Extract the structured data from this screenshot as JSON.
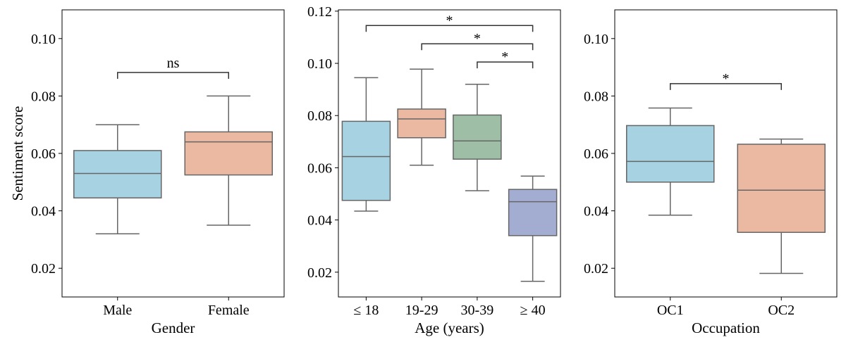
{
  "shared": {
    "ylabel": "Sentiment score"
  },
  "chart_data": [
    {
      "type": "box",
      "xlabel": "Gender",
      "ylim": [
        0.01,
        0.11
      ],
      "yticks": [
        "0.02",
        "0.04",
        "0.06",
        "0.08",
        "0.10"
      ],
      "grid": false,
      "categories": [
        "Male",
        "Female"
      ],
      "boxes": [
        {
          "name": "Male",
          "whisker_low": 0.032,
          "q1": 0.0445,
          "median": 0.053,
          "q3": 0.061,
          "whisker_high": 0.07,
          "color": "#a7d2e2"
        },
        {
          "name": "Female",
          "whisker_low": 0.035,
          "q1": 0.0525,
          "median": 0.064,
          "q3": 0.0675,
          "whisker_high": 0.08,
          "color": "#ebb8a1"
        }
      ],
      "significance": [
        {
          "from": "Male",
          "to": "Female",
          "y": 0.0882,
          "label": "ns"
        }
      ]
    },
    {
      "type": "box",
      "xlabel": "Age (years)",
      "ylim": [
        0.0105,
        0.1205
      ],
      "yticks": [
        "0.02",
        "0.04",
        "0.06",
        "0.08",
        "0.10",
        "0.12"
      ],
      "grid": false,
      "categories": [
        "≤ 18",
        "19-29",
        "30-39",
        "≥ 40"
      ],
      "boxes": [
        {
          "name": "≤ 18",
          "whisker_low": 0.0434,
          "q1": 0.0475,
          "median": 0.0643,
          "q3": 0.0778,
          "whisker_high": 0.0945,
          "color": "#a7d2e2"
        },
        {
          "name": "19-29",
          "whisker_low": 0.061,
          "q1": 0.0715,
          "median": 0.0787,
          "q3": 0.0825,
          "whisker_high": 0.0978,
          "color": "#ebb8a1"
        },
        {
          "name": "30-39",
          "whisker_low": 0.0512,
          "q1": 0.0633,
          "median": 0.0703,
          "q3": 0.0802,
          "whisker_high": 0.092,
          "color": "#9ebfa5"
        },
        {
          "name": "≥ 40",
          "whisker_low": 0.0165,
          "q1": 0.034,
          "median": 0.047,
          "q3": 0.0517,
          "whisker_high": 0.0568,
          "color": "#a3add2"
        }
      ],
      "significance": [
        {
          "from": "≤ 18",
          "to": "≥ 40",
          "y": 0.1145,
          "label": "*"
        },
        {
          "from": "19-29",
          "to": "≥ 40",
          "y": 0.1075,
          "label": "*"
        },
        {
          "from": "30-39",
          "to": "≥ 40",
          "y": 0.1005,
          "label": "*"
        }
      ]
    },
    {
      "type": "box",
      "xlabel": "Occupation",
      "ylim": [
        0.01,
        0.11
      ],
      "yticks": [
        "0.02",
        "0.04",
        "0.06",
        "0.08",
        "0.10"
      ],
      "grid": false,
      "categories": [
        "OC1",
        "OC2"
      ],
      "boxes": [
        {
          "name": "OC1",
          "whisker_low": 0.0385,
          "q1": 0.05,
          "median": 0.0572,
          "q3": 0.0697,
          "whisker_high": 0.0758,
          "color": "#a7d2e2"
        },
        {
          "name": "OC2",
          "whisker_low": 0.0182,
          "q1": 0.0325,
          "median": 0.0472,
          "q3": 0.0632,
          "whisker_high": 0.065,
          "color": "#ebb8a1"
        }
      ],
      "significance": [
        {
          "from": "OC1",
          "to": "OC2",
          "y": 0.0843,
          "label": "*"
        }
      ]
    }
  ]
}
